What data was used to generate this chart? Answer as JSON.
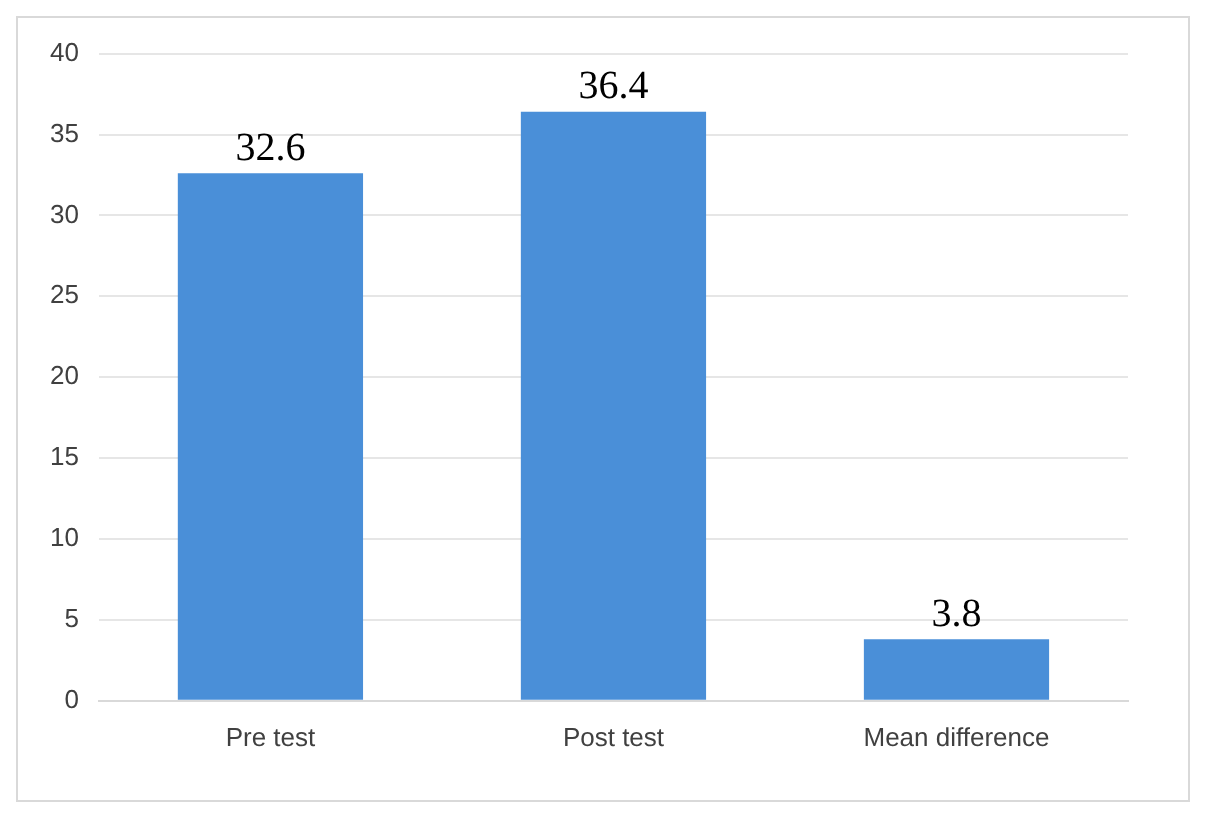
{
  "chart_data": {
    "type": "bar",
    "categories": [
      "Pre test",
      "Post test",
      "Mean difference"
    ],
    "values": [
      32.6,
      36.4,
      3.8
    ],
    "color": "#4a8fd8",
    "ylim": [
      0,
      40
    ],
    "yticks": [
      0,
      5,
      10,
      15,
      20,
      25,
      30,
      35,
      40
    ],
    "grid": "y",
    "data_labels": true,
    "legend": false
  }
}
